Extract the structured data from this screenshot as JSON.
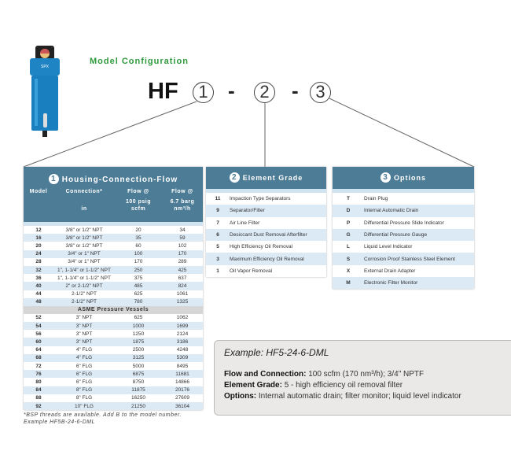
{
  "header": {
    "title": "Model Configuration",
    "prefix": "HF",
    "positions": [
      "1",
      "2",
      "3"
    ],
    "separator": "-"
  },
  "colors": {
    "panel_header": "#4d7c96",
    "stripe": "#dceaf6",
    "title_green": "#2e9a3c"
  },
  "product_image": {
    "icon": "compressed-air-filter",
    "brand": "SPX"
  },
  "table1": {
    "number": "1",
    "title": "Housing-Connection-Flow",
    "columns": [
      "Model",
      "Connection*",
      "Flow @",
      "Flow @"
    ],
    "subcolumns": [
      "",
      "in",
      "100 psig scfm",
      "6.7 barg nm³/h"
    ],
    "rows": [
      [
        "12",
        "3/8\" or 1/2\" NPT",
        "20",
        "34"
      ],
      [
        "16",
        "3/8\" or 1/2\" NPT",
        "35",
        "59"
      ],
      [
        "20",
        "3/8\" or 1/2\" NPT",
        "60",
        "102"
      ],
      [
        "24",
        "3/4\" or 1\" NPT",
        "100",
        "170"
      ],
      [
        "28",
        "3/4\" or 1\" NPT",
        "170",
        "289"
      ],
      [
        "32",
        "1\", 1-1/4\" or 1-1/2\" NPT",
        "250",
        "425"
      ],
      [
        "36",
        "1\", 1-1/4\" or 1-1/2\" NPT",
        "375",
        "637"
      ],
      [
        "40",
        "2\" or 2-1/2\" NPT",
        "485",
        "824"
      ],
      [
        "44",
        "2-1/2\" NPT",
        "625",
        "1061"
      ],
      [
        "48",
        "2-1/2\" NPT",
        "780",
        "1325"
      ]
    ],
    "section": "ASME Pressure Vessels",
    "rows2": [
      [
        "52",
        "3\" NPT",
        "625",
        "1062"
      ],
      [
        "54",
        "3\" NPT",
        "1000",
        "1699"
      ],
      [
        "56",
        "3\" NPT",
        "1250",
        "2124"
      ],
      [
        "60",
        "3\" NPT",
        "1875",
        "3186"
      ],
      [
        "64",
        "4\" FLG",
        "2500",
        "4248"
      ],
      [
        "68",
        "4\" FLG",
        "3125",
        "5309"
      ],
      [
        "72",
        "6\" FLG",
        "5000",
        "8495"
      ],
      [
        "76",
        "6\" FLG",
        "6875",
        "11681"
      ],
      [
        "80",
        "6\" FLG",
        "8750",
        "14866"
      ],
      [
        "84",
        "8\" FLG",
        "11875",
        "20176"
      ],
      [
        "88",
        "8\" FLG",
        "16250",
        "27609"
      ],
      [
        "92",
        "10\" FLG",
        "21250",
        "36104"
      ]
    ],
    "footnote1": "*BSP threads are available. Add B to the model number.",
    "footnote2": "Example HF5B-24-6-DML"
  },
  "table2": {
    "number": "2",
    "title": "Element Grade",
    "rows": [
      [
        "11",
        "Impaction Type Separators"
      ],
      [
        "9",
        "Separator/Filter"
      ],
      [
        "7",
        "Air Line Filter"
      ],
      [
        "6",
        "Desiccant Dust Removal Afterfilter"
      ],
      [
        "5",
        "High Efficiency Oil Removal"
      ],
      [
        "3",
        "Maximum Efficiency Oil Removal"
      ],
      [
        "1",
        "Oil Vapor Removal"
      ]
    ]
  },
  "table3": {
    "number": "3",
    "title": "Options",
    "rows": [
      [
        "T",
        "Drain Plug"
      ],
      [
        "D",
        "Internal Automatic Drain"
      ],
      [
        "P",
        "Differential Pressure Slide Indicator"
      ],
      [
        "G",
        "Differential Pressure Gauge"
      ],
      [
        "L",
        "Liquid Level Indicator"
      ],
      [
        "S",
        "Corrosion Proof Stainless Steel Element"
      ],
      [
        "X",
        "External Drain Adapter"
      ],
      [
        "M",
        "Electronic Filter Monitor"
      ]
    ]
  },
  "example": {
    "title": "Example: HF5-24-6-DML",
    "flow_label": "Flow and Connection:",
    "flow_value": "100 scfm (170 nm³/h); 3/4\" NPTF",
    "grade_label": "Element Grade:",
    "grade_value": "5 - high efficiency oil removal filter",
    "options_label": "Options:",
    "options_value": "Internal automatic drain; filter monitor; liquid level indicator"
  }
}
